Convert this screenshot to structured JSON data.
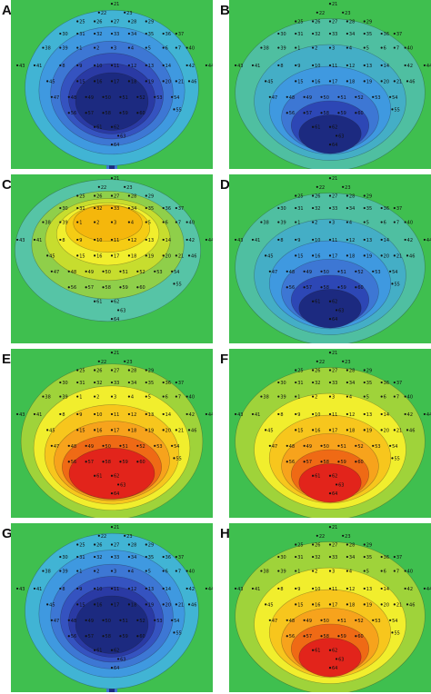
{
  "panels": [
    {
      "id": "A",
      "label": "A",
      "palette": [
        "#3fbf4f",
        "#41b4d4",
        "#3f99e0",
        "#3d77d4",
        "#3553c0",
        "#2a3aa4",
        "#1c2a80"
      ],
      "levels": [
        6,
        6,
        5,
        4,
        4,
        3
      ]
    },
    {
      "id": "B",
      "label": "B",
      "palette": [
        "#3fbf4f",
        "#4fbfa1",
        "#44aec6",
        "#3f99e0",
        "#3d77d4",
        "#2d47b5",
        "#1c2a80"
      ],
      "levels": [
        2,
        2,
        3,
        3,
        3,
        2
      ]
    },
    {
      "id": "C",
      "label": "C",
      "palette": [
        "#3fbf4f",
        "#56c4a6",
        "#8fcf4a",
        "#c7dd2e",
        "#f1ee2d",
        "#f5cc14",
        "#f5b70c"
      ],
      "levels": [
        2,
        2,
        2,
        3,
        2,
        1
      ]
    },
    {
      "id": "D",
      "label": "D",
      "palette": [
        "#3fbf4f",
        "#4fbfa1",
        "#44aec6",
        "#3f99e0",
        "#3d77d4",
        "#2d47b5",
        "#1c2a80"
      ],
      "levels": [
        2,
        2,
        3,
        3,
        3,
        2
      ]
    },
    {
      "id": "E",
      "label": "E",
      "palette": [
        "#3fbf4f",
        "#9fd33a",
        "#f1ee2d",
        "#f7c61d",
        "#f7a31c",
        "#ef6a15",
        "#e2241b"
      ],
      "levels": [
        4,
        5,
        4,
        4,
        4,
        3
      ]
    },
    {
      "id": "F",
      "label": "F",
      "palette": [
        "#3fbf4f",
        "#9fd33a",
        "#f1ee2d",
        "#f7c61d",
        "#f7a31c",
        "#ef6a15",
        "#e2241b"
      ],
      "levels": [
        2,
        2,
        3,
        3,
        2,
        2
      ]
    },
    {
      "id": "G",
      "label": "G",
      "palette": [
        "#3fbf4f",
        "#41b4d4",
        "#3f99e0",
        "#3d77d4",
        "#3553c0",
        "#2a3aa4",
        "#1c2a80"
      ],
      "levels": [
        6,
        6,
        5,
        4,
        4,
        3
      ]
    },
    {
      "id": "H",
      "label": "H",
      "palette": [
        "#3fbf4f",
        "#9fd33a",
        "#f1ee2d",
        "#f7c61d",
        "#f7a31c",
        "#ef6a15",
        "#e2241b"
      ],
      "levels": [
        2,
        3,
        3,
        3,
        3,
        2
      ]
    }
  ],
  "electrodes": [
    {
      "n": "21",
      "gx": 0,
      "gy": -4.3
    },
    {
      "n": "22",
      "gx": -0.6,
      "gy": -3.8
    },
    {
      "n": "23",
      "gx": 0.6,
      "gy": -3.8
    },
    {
      "n": "25",
      "gx": -1.6,
      "gy": -3.3
    },
    {
      "n": "26",
      "gx": -0.8,
      "gy": -3.3
    },
    {
      "n": "27",
      "gx": 0,
      "gy": -3.3
    },
    {
      "n": "28",
      "gx": 0.8,
      "gy": -3.3
    },
    {
      "n": "29",
      "gx": 1.6,
      "gy": -3.3
    },
    {
      "n": "30",
      "gx": -2.4,
      "gy": -2.6
    },
    {
      "n": "31",
      "gx": -1.6,
      "gy": -2.6
    },
    {
      "n": "32",
      "gx": -0.8,
      "gy": -2.6
    },
    {
      "n": "33",
      "gx": 0,
      "gy": -2.6
    },
    {
      "n": "34",
      "gx": 0.8,
      "gy": -2.6
    },
    {
      "n": "35",
      "gx": 1.6,
      "gy": -2.6
    },
    {
      "n": "36",
      "gx": 2.4,
      "gy": -2.6
    },
    {
      "n": "37",
      "gx": 3.0,
      "gy": -2.6
    },
    {
      "n": "38",
      "gx": -3.2,
      "gy": -1.8
    },
    {
      "n": "39",
      "gx": -2.4,
      "gy": -1.8
    },
    {
      "n": "1",
      "gx": -1.6,
      "gy": -1.8
    },
    {
      "n": "2",
      "gx": -0.8,
      "gy": -1.8
    },
    {
      "n": "3",
      "gx": 0,
      "gy": -1.8
    },
    {
      "n": "4",
      "gx": 0.8,
      "gy": -1.8
    },
    {
      "n": "5",
      "gx": 1.6,
      "gy": -1.8
    },
    {
      "n": "6",
      "gx": 2.4,
      "gy": -1.8
    },
    {
      "n": "7",
      "gx": 3.0,
      "gy": -1.8
    },
    {
      "n": "40",
      "gx": 3.5,
      "gy": -1.8
    },
    {
      "n": "43",
      "gx": -4.4,
      "gy": -0.8
    },
    {
      "n": "41",
      "gx": -3.6,
      "gy": -0.8
    },
    {
      "n": "8",
      "gx": -2.4,
      "gy": -0.8
    },
    {
      "n": "9",
      "gx": -1.6,
      "gy": -0.8
    },
    {
      "n": "10",
      "gx": -0.8,
      "gy": -0.8
    },
    {
      "n": "11",
      "gx": 0,
      "gy": -0.8
    },
    {
      "n": "12",
      "gx": 0.8,
      "gy": -0.8
    },
    {
      "n": "13",
      "gx": 1.6,
      "gy": -0.8
    },
    {
      "n": "14",
      "gx": 2.4,
      "gy": -0.8
    },
    {
      "n": "42",
      "gx": 3.5,
      "gy": -0.8
    },
    {
      "n": "44",
      "gx": 4.4,
      "gy": -0.8
    },
    {
      "n": "45",
      "gx": -3.0,
      "gy": 0.1
    },
    {
      "n": "15",
      "gx": -1.6,
      "gy": 0.1
    },
    {
      "n": "16",
      "gx": -0.8,
      "gy": 0.1
    },
    {
      "n": "17",
      "gx": 0,
      "gy": 0.1
    },
    {
      "n": "18",
      "gx": 0.8,
      "gy": 0.1
    },
    {
      "n": "19",
      "gx": 1.6,
      "gy": 0.1
    },
    {
      "n": "20",
      "gx": 2.4,
      "gy": 0.1
    },
    {
      "n": "21",
      "gx": 3.0,
      "gy": 0.1
    },
    {
      "n": "46",
      "gx": 3.6,
      "gy": 0.1
    },
    {
      "n": "47",
      "gx": -2.8,
      "gy": 1.0
    },
    {
      "n": "48",
      "gx": -2.0,
      "gy": 1.0
    },
    {
      "n": "49",
      "gx": -1.2,
      "gy": 1.0
    },
    {
      "n": "50",
      "gx": -0.4,
      "gy": 1.0
    },
    {
      "n": "51",
      "gx": 0.4,
      "gy": 1.0
    },
    {
      "n": "52",
      "gx": 1.2,
      "gy": 1.0
    },
    {
      "n": "53",
      "gx": 2.0,
      "gy": 1.0
    },
    {
      "n": "54",
      "gx": 2.8,
      "gy": 1.0
    },
    {
      "n": "55",
      "gx": 2.9,
      "gy": 1.7
    },
    {
      "n": "56",
      "gx": -2.0,
      "gy": 1.9
    },
    {
      "n": "57",
      "gx": -1.2,
      "gy": 1.9
    },
    {
      "n": "58",
      "gx": -0.4,
      "gy": 1.9
    },
    {
      "n": "59",
      "gx": 0.4,
      "gy": 1.9
    },
    {
      "n": "60",
      "gx": 1.2,
      "gy": 1.9
    },
    {
      "n": "61",
      "gx": -0.8,
      "gy": 2.7
    },
    {
      "n": "62",
      "gx": 0,
      "gy": 2.7
    },
    {
      "n": "63",
      "gx": 0.3,
      "gy": 3.2
    },
    {
      "n": "64",
      "gx": 0,
      "gy": 3.7
    }
  ]
}
